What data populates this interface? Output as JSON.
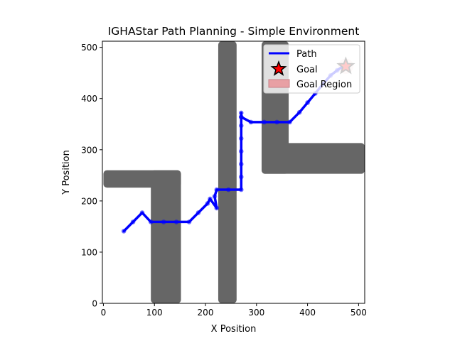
{
  "chart_data": {
    "type": "line",
    "title": "IGHAStar Path Planning - Simple Environment",
    "xlabel": "X Position",
    "ylabel": "Y Position",
    "xlim": [
      -2,
      512
    ],
    "ylim": [
      0,
      512
    ],
    "xticks": [
      0,
      100,
      200,
      300,
      400,
      500
    ],
    "yticks": [
      0,
      100,
      200,
      300,
      400,
      500
    ],
    "grid": false,
    "legend_position": "top-right",
    "obstacle_color": "#666666",
    "obstacles": [
      {
        "x": [
          0,
          152
        ],
        "y": [
          226,
          260
        ]
      },
      {
        "x": [
          93,
          152
        ],
        "y": [
          0,
          260
        ]
      },
      {
        "x": [
          225,
          261
        ],
        "y": [
          0,
          512
        ]
      },
      {
        "x": [
          310,
          363
        ],
        "y": [
          253,
          512
        ]
      },
      {
        "x": [
          310,
          512
        ],
        "y": [
          253,
          313
        ]
      }
    ],
    "series": [
      {
        "name": "Path",
        "color": "#0000ff",
        "x": [
          40,
          58,
          76,
          93,
          118,
          143,
          168,
          186,
          204,
          209,
          222,
          218,
          222,
          245,
          270,
          270,
          270,
          270,
          270,
          270,
          270,
          270,
          270,
          289,
          315,
          340,
          365,
          384,
          400,
          415,
          430,
          445,
          458,
          471
        ],
        "y": [
          141,
          159,
          177,
          159,
          159,
          159,
          159,
          177,
          195,
          204,
          186,
          209,
          222,
          222,
          222,
          247,
          272,
          297,
          322,
          347,
          372,
          364,
          364,
          354,
          354,
          354,
          354,
          373,
          392,
          410,
          428,
          445,
          455,
          464
        ]
      }
    ],
    "goal": {
      "name": "Goal",
      "x": 475,
      "y": 463,
      "color": "#ff0000"
    },
    "goal_region": {
      "name": "Goal Region",
      "x": 475,
      "y": 463,
      "radius": 15,
      "color": "#e8a0a4"
    },
    "legend": [
      "Path",
      "Goal",
      "Goal Region"
    ]
  }
}
